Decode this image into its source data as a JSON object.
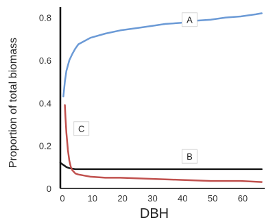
{
  "chart_data": {
    "type": "line",
    "title": "",
    "xlabel": "DBH",
    "ylabel": "Proportion of total biomass",
    "xlim": [
      0,
      68
    ],
    "ylim": [
      0,
      0.85
    ],
    "x_ticks": [
      0,
      10,
      20,
      30,
      40,
      50,
      60
    ],
    "y_ticks": [
      0,
      0.2,
      0.4,
      0.6,
      0.8
    ],
    "x_tick_labels": [
      "0",
      "10",
      "20",
      "30",
      "40",
      "50",
      "60"
    ],
    "y_tick_labels": [
      "0",
      "0.2",
      "0.4",
      "0.6",
      "0.8"
    ],
    "grid": false,
    "legend": "none",
    "series": [
      {
        "name": "A",
        "color": "#6b9ad6",
        "x": [
          1,
          1.5,
          2,
          3,
          4,
          5,
          6,
          8,
          10,
          15,
          20,
          25,
          30,
          35,
          40,
          45,
          50,
          55,
          60,
          65,
          67
        ],
        "y": [
          0.43,
          0.5,
          0.55,
          0.6,
          0.63,
          0.655,
          0.675,
          0.69,
          0.705,
          0.725,
          0.74,
          0.75,
          0.76,
          0.77,
          0.775,
          0.785,
          0.79,
          0.8,
          0.805,
          0.815,
          0.82
        ]
      },
      {
        "name": "B",
        "color": "#1a1a1a",
        "x": [
          0,
          1,
          2,
          3,
          5,
          10,
          20,
          30,
          40,
          50,
          60,
          67
        ],
        "y": [
          0.12,
          0.11,
          0.1,
          0.095,
          0.09,
          0.09,
          0.09,
          0.09,
          0.09,
          0.09,
          0.09,
          0.09
        ]
      },
      {
        "name": "C",
        "color": "#c0504d",
        "x": [
          1.5,
          1.7,
          2,
          2.5,
          3,
          3.5,
          4,
          5,
          6,
          8,
          10,
          15,
          20,
          30,
          40,
          50,
          60,
          67
        ],
        "y": [
          0.39,
          0.33,
          0.26,
          0.18,
          0.13,
          0.1,
          0.085,
          0.07,
          0.065,
          0.06,
          0.055,
          0.05,
          0.05,
          0.045,
          0.04,
          0.035,
          0.035,
          0.03
        ]
      }
    ],
    "annotations": [
      {
        "text": "A",
        "x": 43,
        "y": 0.79
      },
      {
        "text": "B",
        "x": 43,
        "y": 0.15
      },
      {
        "text": "C",
        "x": 7,
        "y": 0.28
      }
    ]
  }
}
